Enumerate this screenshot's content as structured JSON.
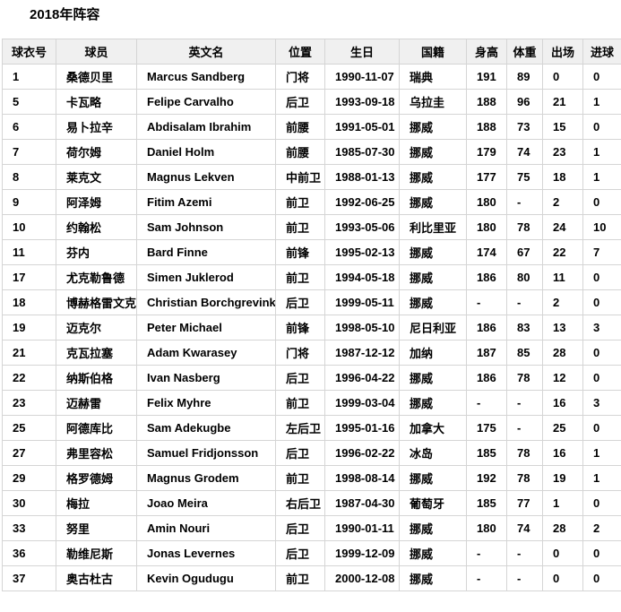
{
  "page": {
    "title": "2018年阵容"
  },
  "colors": {
    "header_bg": "#f0f0f0",
    "border": "#d5d5d5",
    "text": "#000000",
    "background": "#ffffff"
  },
  "table": {
    "columns": [
      "球衣号",
      "球员",
      "英文名",
      "位置",
      "生日",
      "国籍",
      "身高",
      "体重",
      "出场",
      "进球"
    ],
    "rows": [
      [
        "1",
        "桑德贝里",
        "Marcus Sandberg",
        "门将",
        "1990-11-07",
        "瑞典",
        "191",
        "89",
        "0",
        "0"
      ],
      [
        "5",
        "卡瓦略",
        "Felipe Carvalho",
        "后卫",
        "1993-09-18",
        "乌拉圭",
        "188",
        "96",
        "21",
        "1"
      ],
      [
        "6",
        "易卜拉辛",
        "Abdisalam Ibrahim",
        "前腰",
        "1991-05-01",
        "挪威",
        "188",
        "73",
        "15",
        "0"
      ],
      [
        "7",
        "荷尔姆",
        "Daniel Holm",
        "前腰",
        "1985-07-30",
        "挪威",
        "179",
        "74",
        "23",
        "1"
      ],
      [
        "8",
        "莱克文",
        "Magnus Lekven",
        "中前卫",
        "1988-01-13",
        "挪威",
        "177",
        "75",
        "18",
        "1"
      ],
      [
        "9",
        "阿泽姆",
        "Fitim Azemi",
        "前卫",
        "1992-06-25",
        "挪威",
        "180",
        "-",
        "2",
        "0"
      ],
      [
        "10",
        "约翰松",
        "Sam Johnson",
        "前卫",
        "1993-05-06",
        "利比里亚",
        "180",
        "78",
        "24",
        "10"
      ],
      [
        "11",
        "芬内",
        "Bard Finne",
        "前锋",
        "1995-02-13",
        "挪威",
        "174",
        "67",
        "22",
        "7"
      ],
      [
        "17",
        "尤克勒鲁德",
        "Simen Juklerod",
        "前卫",
        "1994-05-18",
        "挪威",
        "186",
        "80",
        "11",
        "0"
      ],
      [
        "18",
        "博赫格雷文克",
        "Christian Borchgrevink",
        "后卫",
        "1999-05-11",
        "挪威",
        "-",
        "-",
        "2",
        "0"
      ],
      [
        "19",
        "迈克尔",
        "Peter Michael",
        "前锋",
        "1998-05-10",
        "尼日利亚",
        "186",
        "83",
        "13",
        "3"
      ],
      [
        "21",
        "克瓦拉塞",
        "Adam Kwarasey",
        "门将",
        "1987-12-12",
        "加纳",
        "187",
        "85",
        "28",
        "0"
      ],
      [
        "22",
        "纳斯伯格",
        "Ivan Nasberg",
        "后卫",
        "1996-04-22",
        "挪威",
        "186",
        "78",
        "12",
        "0"
      ],
      [
        "23",
        "迈赫雷",
        "Felix Myhre",
        "前卫",
        "1999-03-04",
        "挪威",
        "-",
        "-",
        "16",
        "3"
      ],
      [
        "25",
        "阿德库比",
        "Sam Adekugbe",
        "左后卫",
        "1995-01-16",
        "加拿大",
        "175",
        "-",
        "25",
        "0"
      ],
      [
        "27",
        "弗里容松",
        "Samuel Fridjonsson",
        "后卫",
        "1996-02-22",
        "冰岛",
        "185",
        "78",
        "16",
        "1"
      ],
      [
        "29",
        "格罗德姆",
        "Magnus Grodem",
        "前卫",
        "1998-08-14",
        "挪威",
        "192",
        "78",
        "19",
        "1"
      ],
      [
        "30",
        "梅拉",
        "Joao Meira",
        "右后卫",
        "1987-04-30",
        "葡萄牙",
        "185",
        "77",
        "1",
        "0"
      ],
      [
        "33",
        "努里",
        "Amin Nouri",
        "后卫",
        "1990-01-11",
        "挪威",
        "180",
        "74",
        "28",
        "2"
      ],
      [
        "36",
        "勒维尼斯",
        "Jonas Levernes",
        "后卫",
        "1999-12-09",
        "挪威",
        "-",
        "-",
        "0",
        "0"
      ],
      [
        "37",
        "奥古杜古",
        "Kevin Ogudugu",
        "前卫",
        "2000-12-08",
        "挪威",
        "-",
        "-",
        "0",
        "0"
      ]
    ]
  }
}
